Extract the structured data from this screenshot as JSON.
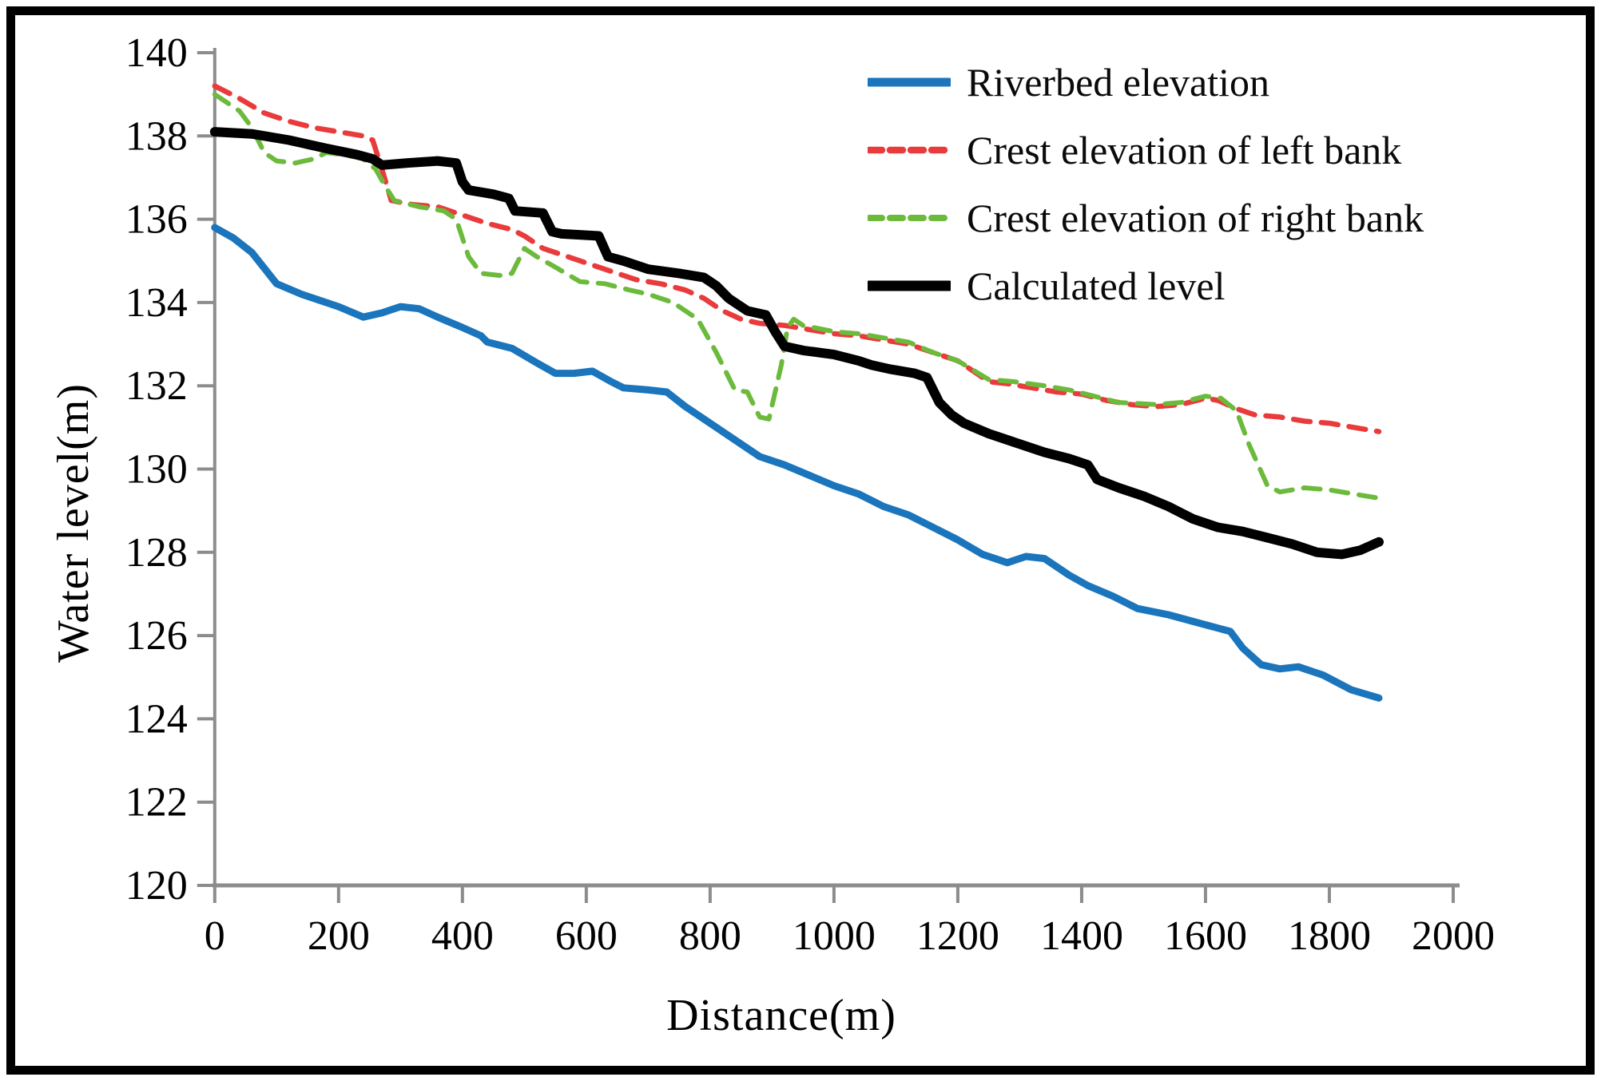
{
  "figure": {
    "background": "#ffffff",
    "border_color": "#000000"
  },
  "axes": {
    "x_label": "Distance(m)",
    "y_label": "Water level(m)",
    "axis_color": "#8c8c8c",
    "tick_label_color": "#000000"
  },
  "legend": {
    "position": "top-right-inside",
    "entries": [
      "Riverbed elevation",
      "Crest elevation of left bank",
      "Crest elevation of right bank",
      "Calculated level"
    ]
  },
  "chart_data": {
    "type": "line",
    "title": "",
    "xlabel": "Distance(m)",
    "ylabel": "Water level(m)",
    "xlim": [
      0,
      2000
    ],
    "ylim": [
      120,
      140
    ],
    "xticks": [
      0,
      200,
      400,
      600,
      800,
      1000,
      1200,
      1400,
      1600,
      1800,
      2000
    ],
    "yticks": [
      120,
      122,
      124,
      126,
      128,
      130,
      132,
      134,
      136,
      138,
      140
    ],
    "grid": false,
    "legend_position": "top-right-inside",
    "series": [
      {
        "name": "Riverbed elevation",
        "color": "#1b75bc",
        "style": "solid",
        "width": 9,
        "points": [
          [
            0,
            135.8
          ],
          [
            30,
            135.55
          ],
          [
            60,
            135.2
          ],
          [
            100,
            134.45
          ],
          [
            140,
            134.2
          ],
          [
            200,
            133.9
          ],
          [
            240,
            133.65
          ],
          [
            270,
            133.75
          ],
          [
            300,
            133.9
          ],
          [
            330,
            133.85
          ],
          [
            360,
            133.65
          ],
          [
            400,
            133.4
          ],
          [
            430,
            133.2
          ],
          [
            440,
            133.05
          ],
          [
            480,
            132.9
          ],
          [
            520,
            132.55
          ],
          [
            550,
            132.3
          ],
          [
            580,
            132.3
          ],
          [
            610,
            132.35
          ],
          [
            640,
            132.1
          ],
          [
            660,
            131.95
          ],
          [
            700,
            131.9
          ],
          [
            730,
            131.85
          ],
          [
            760,
            131.5
          ],
          [
            800,
            131.1
          ],
          [
            840,
            130.7
          ],
          [
            880,
            130.3
          ],
          [
            920,
            130.1
          ],
          [
            960,
            129.85
          ],
          [
            1000,
            129.6
          ],
          [
            1040,
            129.4
          ],
          [
            1080,
            129.1
          ],
          [
            1120,
            128.9
          ],
          [
            1160,
            128.6
          ],
          [
            1200,
            128.3
          ],
          [
            1240,
            127.95
          ],
          [
            1280,
            127.75
          ],
          [
            1310,
            127.9
          ],
          [
            1340,
            127.85
          ],
          [
            1380,
            127.45
          ],
          [
            1410,
            127.2
          ],
          [
            1450,
            126.95
          ],
          [
            1490,
            126.65
          ],
          [
            1540,
            126.5
          ],
          [
            1590,
            126.3
          ],
          [
            1640,
            126.1
          ],
          [
            1660,
            125.7
          ],
          [
            1690,
            125.3
          ],
          [
            1720,
            125.2
          ],
          [
            1750,
            125.25
          ],
          [
            1790,
            125.05
          ],
          [
            1835,
            124.7
          ],
          [
            1880,
            124.5
          ]
        ]
      },
      {
        "name": "Crest elevation of left bank",
        "color": "#e93b3b",
        "style": "dashed",
        "width": 6.5,
        "points": [
          [
            0,
            139.2
          ],
          [
            40,
            138.9
          ],
          [
            80,
            138.55
          ],
          [
            120,
            138.35
          ],
          [
            160,
            138.2
          ],
          [
            200,
            138.1
          ],
          [
            240,
            138.0
          ],
          [
            255,
            137.9
          ],
          [
            270,
            137.2
          ],
          [
            285,
            136.45
          ],
          [
            320,
            136.35
          ],
          [
            360,
            136.3
          ],
          [
            400,
            136.1
          ],
          [
            440,
            135.9
          ],
          [
            480,
            135.75
          ],
          [
            500,
            135.6
          ],
          [
            530,
            135.3
          ],
          [
            560,
            135.15
          ],
          [
            600,
            134.95
          ],
          [
            640,
            134.75
          ],
          [
            680,
            134.55
          ],
          [
            720,
            134.45
          ],
          [
            760,
            134.3
          ],
          [
            790,
            134.1
          ],
          [
            820,
            133.8
          ],
          [
            850,
            133.6
          ],
          [
            880,
            133.5
          ],
          [
            920,
            133.45
          ],
          [
            960,
            133.35
          ],
          [
            1000,
            133.25
          ],
          [
            1040,
            133.2
          ],
          [
            1080,
            133.1
          ],
          [
            1120,
            133.0
          ],
          [
            1160,
            132.8
          ],
          [
            1200,
            132.6
          ],
          [
            1250,
            132.1
          ],
          [
            1280,
            132.05
          ],
          [
            1320,
            131.95
          ],
          [
            1360,
            131.85
          ],
          [
            1400,
            131.8
          ],
          [
            1440,
            131.65
          ],
          [
            1480,
            131.55
          ],
          [
            1520,
            131.5
          ],
          [
            1560,
            131.55
          ],
          [
            1600,
            131.7
          ],
          [
            1620,
            131.65
          ],
          [
            1650,
            131.45
          ],
          [
            1680,
            131.3
          ],
          [
            1720,
            131.25
          ],
          [
            1760,
            131.15
          ],
          [
            1800,
            131.1
          ],
          [
            1840,
            131.0
          ],
          [
            1880,
            130.9
          ]
        ]
      },
      {
        "name": "Crest elevation of right bank",
        "color": "#6cba3c",
        "style": "dashed",
        "width": 6,
        "points": [
          [
            0,
            139.0
          ],
          [
            40,
            138.6
          ],
          [
            60,
            138.2
          ],
          [
            80,
            137.6
          ],
          [
            100,
            137.4
          ],
          [
            130,
            137.35
          ],
          [
            160,
            137.45
          ],
          [
            180,
            137.6
          ],
          [
            210,
            137.55
          ],
          [
            240,
            137.45
          ],
          [
            260,
            137.2
          ],
          [
            275,
            136.8
          ],
          [
            290,
            136.45
          ],
          [
            330,
            136.3
          ],
          [
            370,
            136.2
          ],
          [
            390,
            136.0
          ],
          [
            410,
            135.1
          ],
          [
            430,
            134.7
          ],
          [
            460,
            134.65
          ],
          [
            480,
            134.7
          ],
          [
            500,
            135.3
          ],
          [
            520,
            135.1
          ],
          [
            550,
            134.85
          ],
          [
            590,
            134.5
          ],
          [
            630,
            134.45
          ],
          [
            670,
            134.3
          ],
          [
            700,
            134.2
          ],
          [
            740,
            134.0
          ],
          [
            780,
            133.6
          ],
          [
            810,
            132.8
          ],
          [
            840,
            131.9
          ],
          [
            860,
            131.85
          ],
          [
            880,
            131.25
          ],
          [
            895,
            131.2
          ],
          [
            915,
            132.5
          ],
          [
            925,
            133.4
          ],
          [
            935,
            133.6
          ],
          [
            950,
            133.45
          ],
          [
            1000,
            133.3
          ],
          [
            1040,
            133.25
          ],
          [
            1080,
            133.15
          ],
          [
            1120,
            133.05
          ],
          [
            1160,
            132.8
          ],
          [
            1200,
            132.6
          ],
          [
            1250,
            132.15
          ],
          [
            1290,
            132.1
          ],
          [
            1340,
            132.0
          ],
          [
            1380,
            131.9
          ],
          [
            1420,
            131.75
          ],
          [
            1460,
            131.6
          ],
          [
            1520,
            131.55
          ],
          [
            1560,
            131.6
          ],
          [
            1600,
            131.75
          ],
          [
            1625,
            131.7
          ],
          [
            1650,
            131.4
          ],
          [
            1670,
            130.6
          ],
          [
            1700,
            129.6
          ],
          [
            1720,
            129.45
          ],
          [
            1760,
            129.55
          ],
          [
            1800,
            129.5
          ],
          [
            1840,
            129.4
          ],
          [
            1880,
            129.3
          ]
        ]
      },
      {
        "name": "Calculated level",
        "color": "#000000",
        "style": "solid",
        "width": 12,
        "points": [
          [
            0,
            138.1
          ],
          [
            60,
            138.05
          ],
          [
            120,
            137.9
          ],
          [
            180,
            137.7
          ],
          [
            230,
            137.55
          ],
          [
            255,
            137.45
          ],
          [
            270,
            137.3
          ],
          [
            310,
            137.35
          ],
          [
            360,
            137.4
          ],
          [
            390,
            137.35
          ],
          [
            400,
            136.9
          ],
          [
            410,
            136.7
          ],
          [
            450,
            136.6
          ],
          [
            475,
            136.5
          ],
          [
            485,
            136.2
          ],
          [
            530,
            136.15
          ],
          [
            545,
            135.7
          ],
          [
            560,
            135.65
          ],
          [
            620,
            135.6
          ],
          [
            635,
            135.1
          ],
          [
            660,
            135.0
          ],
          [
            700,
            134.8
          ],
          [
            750,
            134.7
          ],
          [
            790,
            134.6
          ],
          [
            810,
            134.4
          ],
          [
            830,
            134.1
          ],
          [
            860,
            133.8
          ],
          [
            890,
            133.7
          ],
          [
            905,
            133.3
          ],
          [
            920,
            132.95
          ],
          [
            950,
            132.85
          ],
          [
            1000,
            132.75
          ],
          [
            1040,
            132.6
          ],
          [
            1060,
            132.5
          ],
          [
            1090,
            132.4
          ],
          [
            1130,
            132.3
          ],
          [
            1150,
            132.2
          ],
          [
            1170,
            131.6
          ],
          [
            1190,
            131.3
          ],
          [
            1210,
            131.1
          ],
          [
            1250,
            130.85
          ],
          [
            1300,
            130.6
          ],
          [
            1340,
            130.4
          ],
          [
            1380,
            130.25
          ],
          [
            1410,
            130.1
          ],
          [
            1425,
            129.75
          ],
          [
            1460,
            129.55
          ],
          [
            1500,
            129.35
          ],
          [
            1540,
            129.1
          ],
          [
            1580,
            128.8
          ],
          [
            1620,
            128.6
          ],
          [
            1660,
            128.5
          ],
          [
            1700,
            128.35
          ],
          [
            1740,
            128.2
          ],
          [
            1780,
            128.0
          ],
          [
            1820,
            127.95
          ],
          [
            1850,
            128.05
          ],
          [
            1880,
            128.25
          ]
        ]
      }
    ]
  }
}
